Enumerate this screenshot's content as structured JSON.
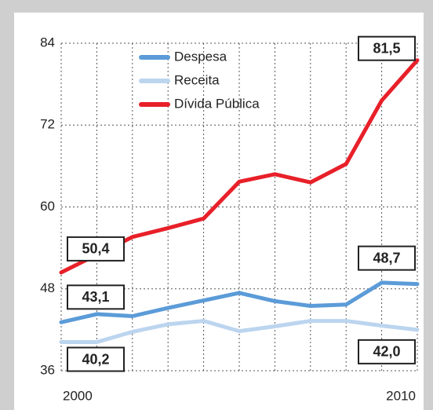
{
  "chart_data": {
    "type": "line",
    "x": [
      2000,
      2001,
      2002,
      2003,
      2004,
      2005,
      2006,
      2007,
      2008,
      2009,
      2010
    ],
    "series": [
      {
        "name": "Despesa",
        "color": "#5b9bd8",
        "values": [
          43.1,
          44.3,
          44.0,
          45.2,
          46.3,
          47.4,
          46.2,
          45.5,
          45.7,
          48.9,
          48.7
        ],
        "value_labels": [
          "43,1",
          null,
          null,
          null,
          null,
          null,
          null,
          null,
          null,
          null,
          "48,7"
        ]
      },
      {
        "name": "Receita",
        "color": "#bcd5ef",
        "values": [
          40.2,
          40.2,
          41.7,
          42.8,
          43.3,
          41.8,
          42.5,
          43.3,
          43.3,
          42.6,
          42.0
        ],
        "value_labels": [
          "40,2",
          null,
          null,
          null,
          null,
          null,
          null,
          null,
          null,
          null,
          "42,0"
        ]
      },
      {
        "name": "Dívida Pública",
        "color": "#e82029",
        "values": [
          50.4,
          53.0,
          55.6,
          56.9,
          58.3,
          63.7,
          64.8,
          63.6,
          66.3,
          75.6,
          81.5
        ],
        "value_labels": [
          "50,4",
          null,
          null,
          null,
          null,
          null,
          null,
          null,
          null,
          null,
          "81,5"
        ]
      }
    ],
    "xlim": [
      2000,
      2010
    ],
    "xticks": [
      2000,
      2010
    ],
    "ylim": [
      36,
      84
    ],
    "yticks": [
      36,
      48,
      60,
      72,
      84
    ],
    "grid": true
  }
}
